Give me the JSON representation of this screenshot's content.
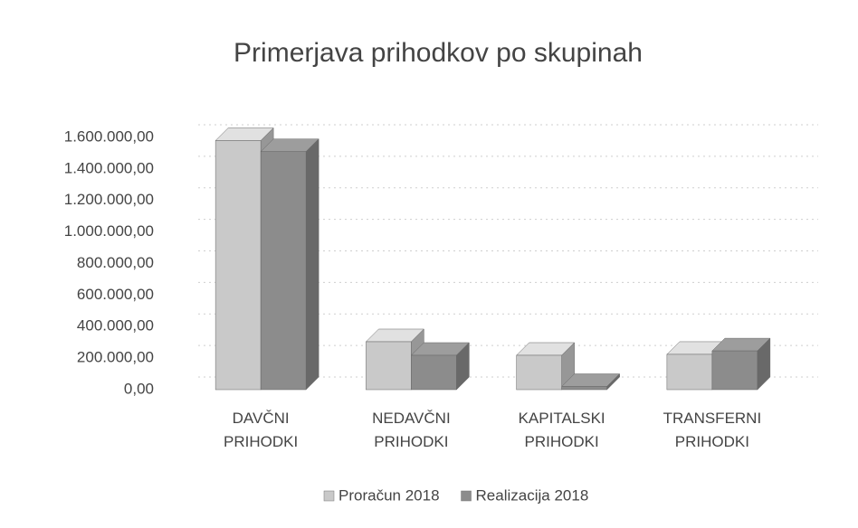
{
  "chart_data": {
    "type": "bar3d",
    "title": "Primerjava prihodkov po skupinah",
    "categories": [
      "DAVČNI PRIHODKI",
      "NEDAVČNI PRIHODKI",
      "KAPITALSKI PRIHODKI",
      "TRANSFERNI PRIHODKI"
    ],
    "series": [
      {
        "name": "Proračun 2018",
        "color": "#c9c9c9",
        "values": [
          1580000,
          304000,
          218000,
          224000
        ]
      },
      {
        "name": "Realizacija 2018",
        "color": "#8c8c8c",
        "values": [
          1510000,
          218000,
          20000,
          246000
        ]
      }
    ],
    "ylim": [
      0,
      1600000
    ],
    "yticks": [
      {
        "value": 0,
        "label": "0,00"
      },
      {
        "value": 200000,
        "label": "200.000,00"
      },
      {
        "value": 400000,
        "label": "400.000,00"
      },
      {
        "value": 600000,
        "label": "600.000,00"
      },
      {
        "value": 800000,
        "label": "800.000,00"
      },
      {
        "value": 1000000,
        "label": "1.000.000,00"
      },
      {
        "value": 1200000,
        "label": "1.200.000,00"
      },
      {
        "value": 1400000,
        "label": "1.400.000,00"
      },
      {
        "value": 1600000,
        "label": "1.600.000,00"
      }
    ],
    "grid": true
  }
}
